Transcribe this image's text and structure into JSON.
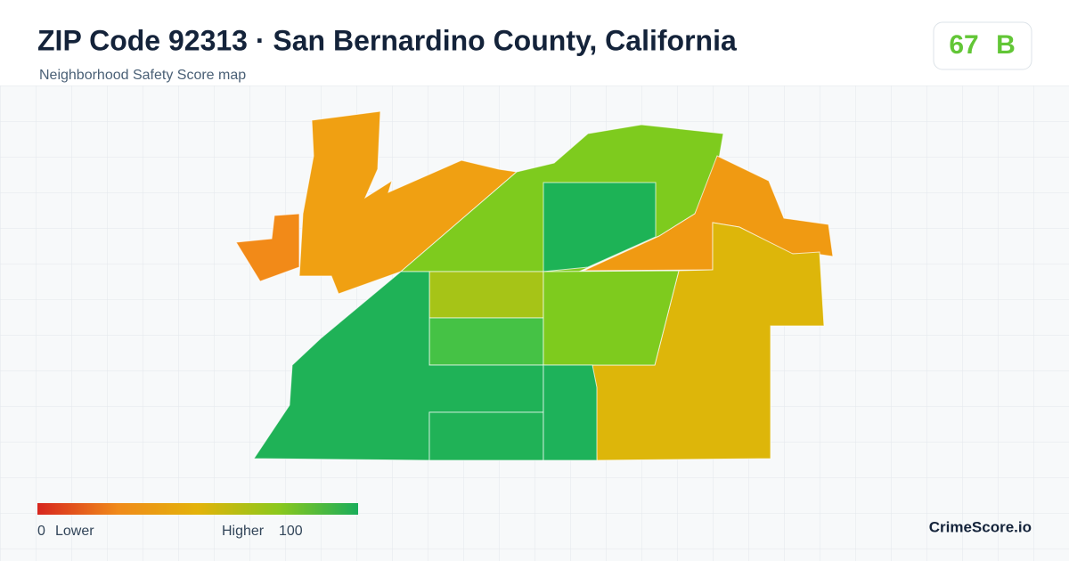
{
  "header": {
    "title": "ZIP Code 92313 · San Bernardino County, California",
    "subtitle": "Neighborhood Safety Score map"
  },
  "score": {
    "value": 67,
    "grade": "B"
  },
  "legend": {
    "min": 0,
    "min_label": "Lower",
    "max_label": "Higher",
    "max": 100
  },
  "brand": "CrimeScore.io"
}
